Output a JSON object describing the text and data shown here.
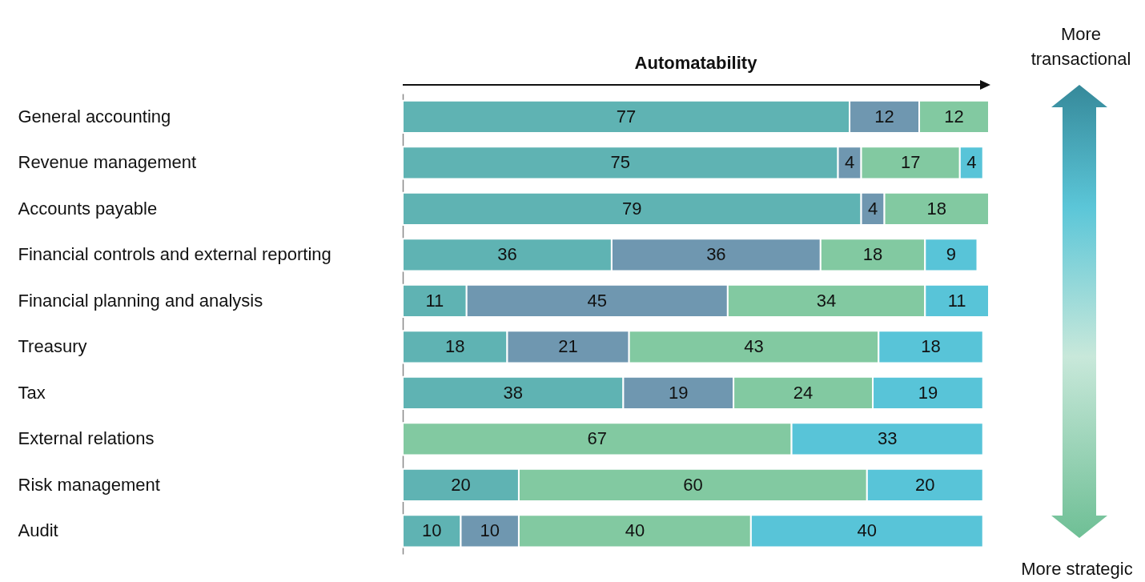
{
  "chart_data": {
    "type": "bar",
    "orientation": "horizontal",
    "stacked": true,
    "data_labels": true,
    "title": "Automatability",
    "categories": [
      "General accounting",
      "Revenue management",
      "Accounts payable",
      "Financial controls and external reporting",
      "Financial planning and analysis",
      "Treasury",
      "Tax",
      "External relations",
      "Risk management",
      "Audit"
    ],
    "series": [
      {
        "color": "#5fb3b3",
        "values": [
          77,
          75,
          79,
          36,
          11,
          18,
          38,
          null,
          20,
          10
        ]
      },
      {
        "color": "#6f97b0",
        "values": [
          12,
          4,
          4,
          36,
          45,
          21,
          19,
          null,
          null,
          10
        ]
      },
      {
        "color": "#82c9a1",
        "values": [
          12,
          17,
          18,
          18,
          34,
          43,
          24,
          67,
          60,
          40
        ]
      },
      {
        "color": "#58c4d8",
        "values": [
          null,
          4,
          null,
          9,
          11,
          18,
          19,
          33,
          20,
          40
        ]
      }
    ],
    "annotations": [
      "More transactional",
      "More strategic"
    ],
    "legend": false
  }
}
